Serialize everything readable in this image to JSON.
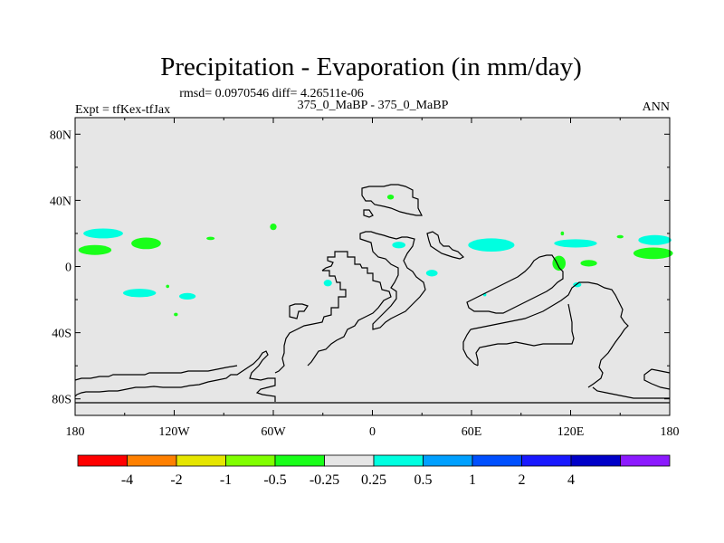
{
  "title": "Precipitation - Evaporation (in mm/day)",
  "stats": "rmsd= 0.0970546 diff= 4.26511e-06",
  "left_label": "Expt = tfKex-tfJax",
  "center_label": "375_0_MaBP - 375_0_MaBP",
  "right_label": "ANN",
  "map": {
    "lon_range": [
      -180,
      180
    ],
    "lat_range": [
      -90,
      90
    ],
    "background_color": "#e6e6e6",
    "x_ticks": [
      {
        "lon": -180,
        "label": "180"
      },
      {
        "lon": -120,
        "label": "120W"
      },
      {
        "lon": -60,
        "label": "60W"
      },
      {
        "lon": 0,
        "label": "0"
      },
      {
        "lon": 60,
        "label": "60E"
      },
      {
        "lon": 120,
        "label": "120E"
      },
      {
        "lon": 180,
        "label": "180"
      }
    ],
    "y_ticks": [
      {
        "lat": 80,
        "label": "80N"
      },
      {
        "lat": 40,
        "label": "40N"
      },
      {
        "lat": 0,
        "label": "0"
      },
      {
        "lat": -40,
        "label": "40S"
      },
      {
        "lat": -80,
        "label": "80S"
      }
    ]
  },
  "colorbar": {
    "colors": [
      "#ff0000",
      "#ff8000",
      "#e6e600",
      "#80ff00",
      "#19ff19",
      "#e6e6e6",
      "#00ffe0",
      "#00a0ff",
      "#0050ff",
      "#1919ff",
      "#0000c8",
      "#8c1aff"
    ],
    "labels": [
      "-4",
      "-2",
      "-1",
      "-0.5",
      "-0.25",
      "0.25",
      "0.5",
      "1",
      "2",
      "4"
    ]
  },
  "anomalies": [
    {
      "lon": -163,
      "lat": 20,
      "rlon": 12,
      "rlat": 3,
      "color": "#00ffe0"
    },
    {
      "lon": -168,
      "lat": 10,
      "rlon": 10,
      "rlat": 3,
      "color": "#19ff19"
    },
    {
      "lon": -137,
      "lat": 14,
      "rlon": 9,
      "rlat": 3.5,
      "color": "#19ff19"
    },
    {
      "lon": -98,
      "lat": 17,
      "rlon": 2.5,
      "rlat": 1,
      "color": "#19ff19"
    },
    {
      "lon": -60,
      "lat": 24,
      "rlon": 2,
      "rlat": 2,
      "color": "#19ff19"
    },
    {
      "lon": -141,
      "lat": -16,
      "rlon": 10,
      "rlat": 2.5,
      "color": "#00ffe0"
    },
    {
      "lon": -112,
      "lat": -18,
      "rlon": 5,
      "rlat": 2,
      "color": "#00ffe0"
    },
    {
      "lon": -124,
      "lat": -12,
      "rlon": 1,
      "rlat": 1,
      "color": "#19ff19"
    },
    {
      "lon": -119,
      "lat": -29,
      "rlon": 1.2,
      "rlat": 1,
      "color": "#19ff19"
    },
    {
      "lon": -27,
      "lat": -10,
      "rlon": 2.5,
      "rlat": 2,
      "color": "#00ffe0"
    },
    {
      "lon": 11,
      "lat": 42,
      "rlon": 2,
      "rlat": 1.5,
      "color": "#19ff19"
    },
    {
      "lon": 16,
      "lat": 13,
      "rlon": 4,
      "rlat": 2,
      "color": "#00ffe0"
    },
    {
      "lon": 36,
      "lat": -4,
      "rlon": 3.5,
      "rlat": 2,
      "color": "#00ffe0"
    },
    {
      "lon": 72,
      "lat": 13,
      "rlon": 14,
      "rlat": 4,
      "color": "#00ffe0"
    },
    {
      "lon": 68,
      "lat": -17,
      "rlon": 1,
      "rlat": 1,
      "color": "#00ffe0"
    },
    {
      "lon": 113,
      "lat": 2,
      "rlon": 4,
      "rlat": 4.5,
      "color": "#19ff19"
    },
    {
      "lon": 115,
      "lat": 20,
      "rlon": 1,
      "rlat": 1.2,
      "color": "#19ff19"
    },
    {
      "lon": 123,
      "lat": 14,
      "rlon": 13,
      "rlat": 2.5,
      "color": "#00ffe0"
    },
    {
      "lon": 131,
      "lat": 2,
      "rlon": 5,
      "rlat": 2,
      "color": "#19ff19"
    },
    {
      "lon": 124,
      "lat": -11,
      "rlon": 2.5,
      "rlat": 1.5,
      "color": "#00ffe0"
    },
    {
      "lon": 150,
      "lat": 18,
      "rlon": 2,
      "rlat": 1,
      "color": "#19ff19"
    },
    {
      "lon": 171,
      "lat": 16,
      "rlon": 10,
      "rlat": 3,
      "color": "#00ffe0"
    },
    {
      "lon": 170,
      "lat": 8,
      "rlon": 12,
      "rlat": 3.5,
      "color": "#19ff19"
    }
  ]
}
